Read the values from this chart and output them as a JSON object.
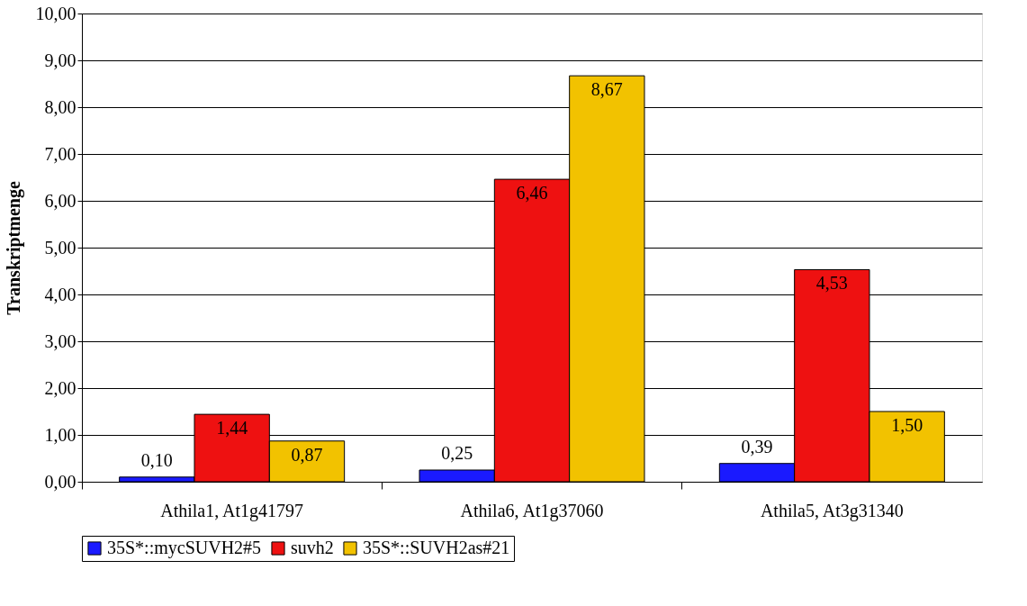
{
  "chart_data": {
    "type": "bar",
    "ylabel": "Transkriptmenge",
    "categories": [
      "Athila1, At1g41797",
      "Athila6, At1g37060",
      "Athila5, At3g31340"
    ],
    "series": [
      {
        "name": "35S*::mycSUVH2#5",
        "color": "#1a1aff",
        "values": [
          0.1,
          0.25,
          0.39
        ],
        "value_labels": [
          "0,10",
          "0,25",
          "0,39"
        ]
      },
      {
        "name": "suvh2",
        "color": "#ee1111",
        "values": [
          1.44,
          6.46,
          4.53
        ],
        "value_labels": [
          "1,44",
          "6,46",
          "4,53"
        ]
      },
      {
        "name": "35S*::SUVH2as#21",
        "color": "#f2c200",
        "values": [
          0.87,
          8.67,
          1.5
        ],
        "value_labels": [
          "0,87",
          "8,67",
          "1,50"
        ]
      }
    ],
    "ylim": [
      0,
      10
    ],
    "yticks": [
      {
        "value": 0,
        "label": "0,00"
      },
      {
        "value": 1,
        "label": "1,00"
      },
      {
        "value": 2,
        "label": "2,00"
      },
      {
        "value": 3,
        "label": "3,00"
      },
      {
        "value": 4,
        "label": "4,00"
      },
      {
        "value": 5,
        "label": "5,00"
      },
      {
        "value": 6,
        "label": "6,00"
      },
      {
        "value": 7,
        "label": "7,00"
      },
      {
        "value": 8,
        "label": "8,00"
      },
      {
        "value": 9,
        "label": "9,00"
      },
      {
        "value": 10,
        "label": "10,00"
      }
    ],
    "grid": "y",
    "legend": "bottom"
  }
}
